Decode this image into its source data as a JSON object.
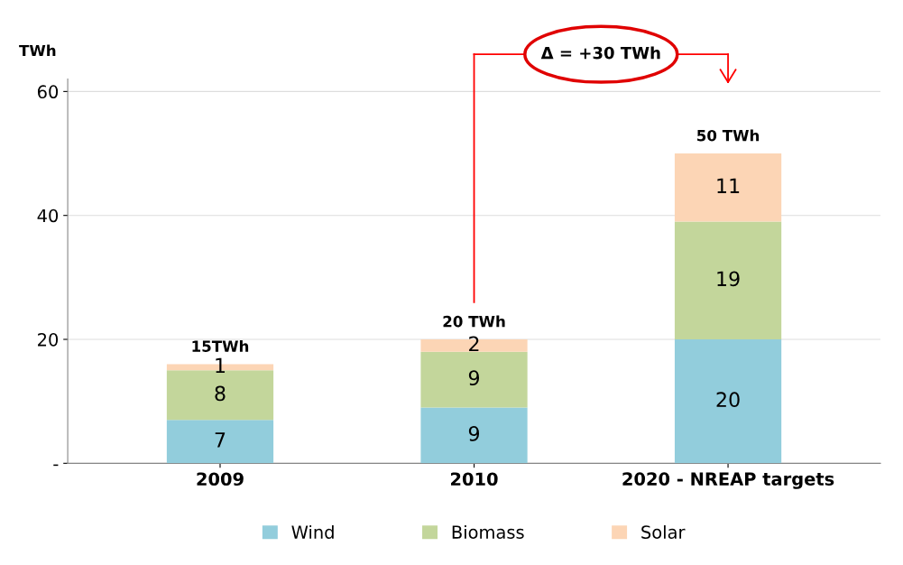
{
  "chart_data": {
    "type": "bar",
    "stacked": true,
    "ylabel": "TWh",
    "categories": [
      "2009",
      "2010",
      "2020 - NREAP targets"
    ],
    "series": [
      {
        "name": "Wind",
        "color": "#92cddc",
        "values": [
          7,
          9,
          20
        ]
      },
      {
        "name": "Biomass",
        "color": "#c3d69b",
        "values": [
          8,
          9,
          19
        ]
      },
      {
        "name": "Solar",
        "color": "#fcd5b5",
        "values": [
          1,
          2,
          11
        ]
      }
    ],
    "ylim": [
      0,
      62
    ],
    "yticks": [
      {
        "value": 0,
        "label": "-"
      },
      20,
      40,
      60
    ],
    "grid": "y",
    "legend": "bottom",
    "data_labels": true,
    "totals": [
      "15TWh",
      "20 TWh",
      "50 TWh"
    ],
    "annotations": [
      "Δ = +30 TWh"
    ]
  }
}
